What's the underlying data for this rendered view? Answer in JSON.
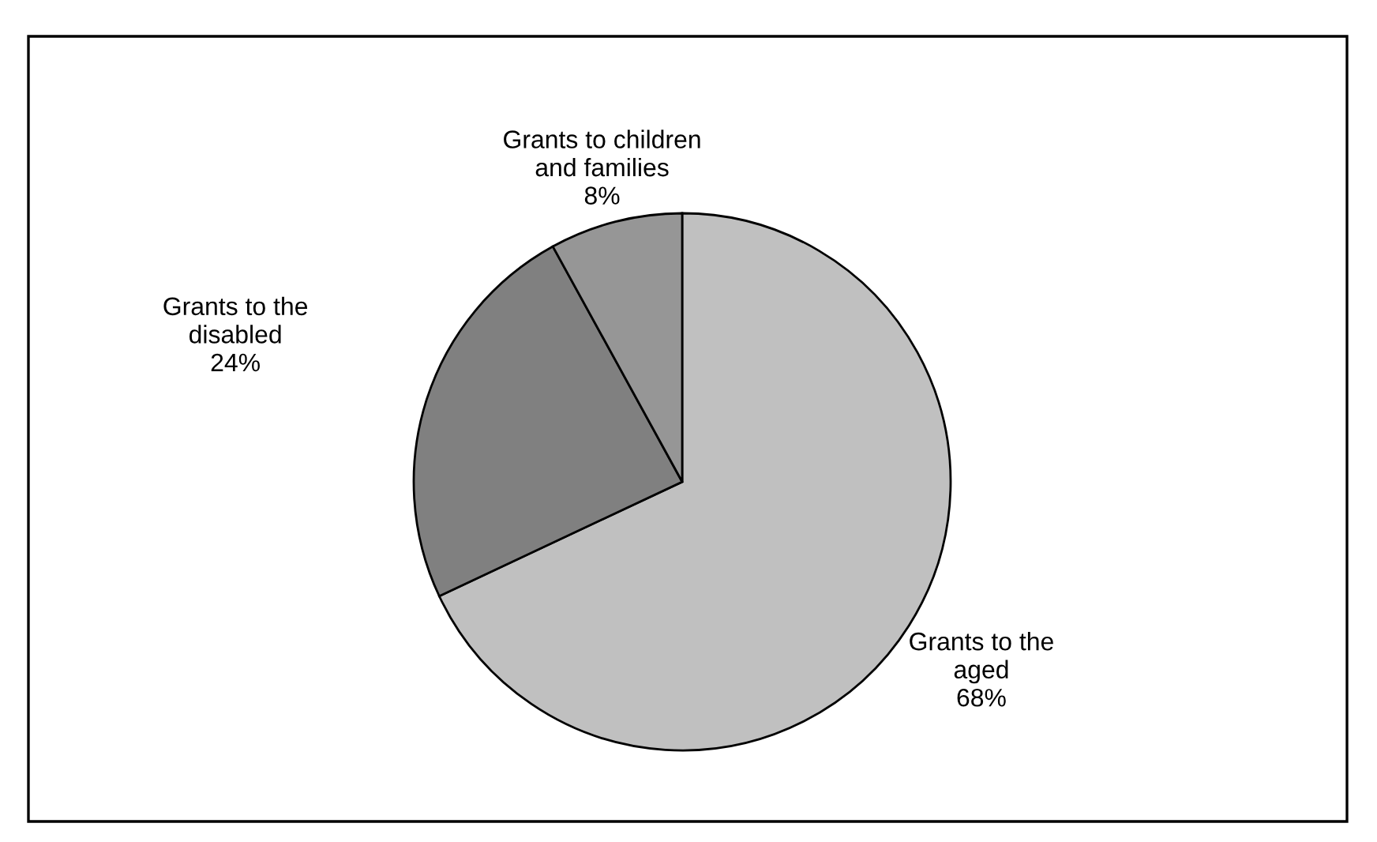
{
  "chart_data": {
    "type": "pie",
    "categories": [
      "Grants to the\naged",
      "Grants to the\ndisabled",
      "Grants to children\nand families"
    ],
    "values": [
      68,
      24,
      8
    ],
    "colors": [
      "#c0c0c0",
      "#808080",
      "#969696"
    ],
    "value_labels": [
      "68%",
      "24%",
      "8%"
    ],
    "legend": false
  }
}
